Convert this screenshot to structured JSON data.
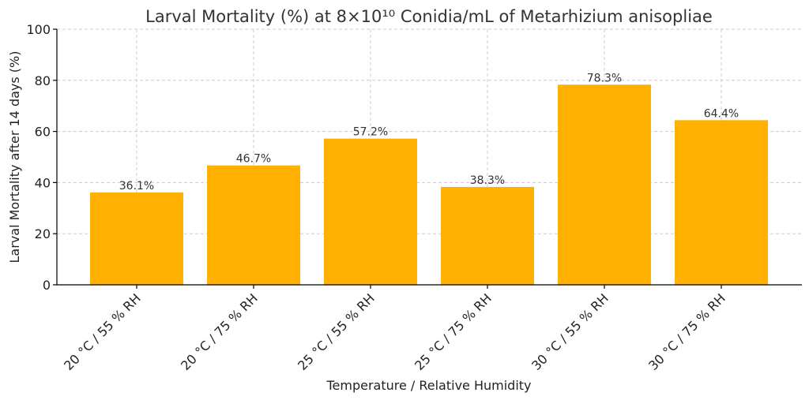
{
  "chart_data": {
    "type": "bar",
    "title": "Larval Mortality (%) at 8×10¹⁰ Conidia/mL of Metarhizium anisopliae",
    "xlabel": "Temperature / Relative Humidity",
    "ylabel": "Larval Mortality after 14 days (%)",
    "categories": [
      "20 °C / 55 % RH",
      "20 °C / 75 % RH",
      "25 °C / 55 % RH",
      "25 °C / 75 % RH",
      "30 °C / 55 % RH",
      "30 °C / 75 % RH"
    ],
    "values": [
      36.1,
      46.7,
      57.2,
      38.3,
      78.3,
      64.4
    ],
    "value_labels": [
      "36.1%",
      "46.7%",
      "57.2%",
      "38.3%",
      "78.3%",
      "64.4%"
    ],
    "ylim": [
      0,
      100
    ],
    "yticks": [
      0,
      20,
      40,
      60,
      80,
      100
    ],
    "ytick_labels": [
      "0",
      "20",
      "40",
      "60",
      "80",
      "100"
    ],
    "grid": true,
    "legend": "none",
    "colors": {
      "bar": "#FFB000",
      "grid": "#cccccc",
      "axis": "#000000"
    }
  }
}
